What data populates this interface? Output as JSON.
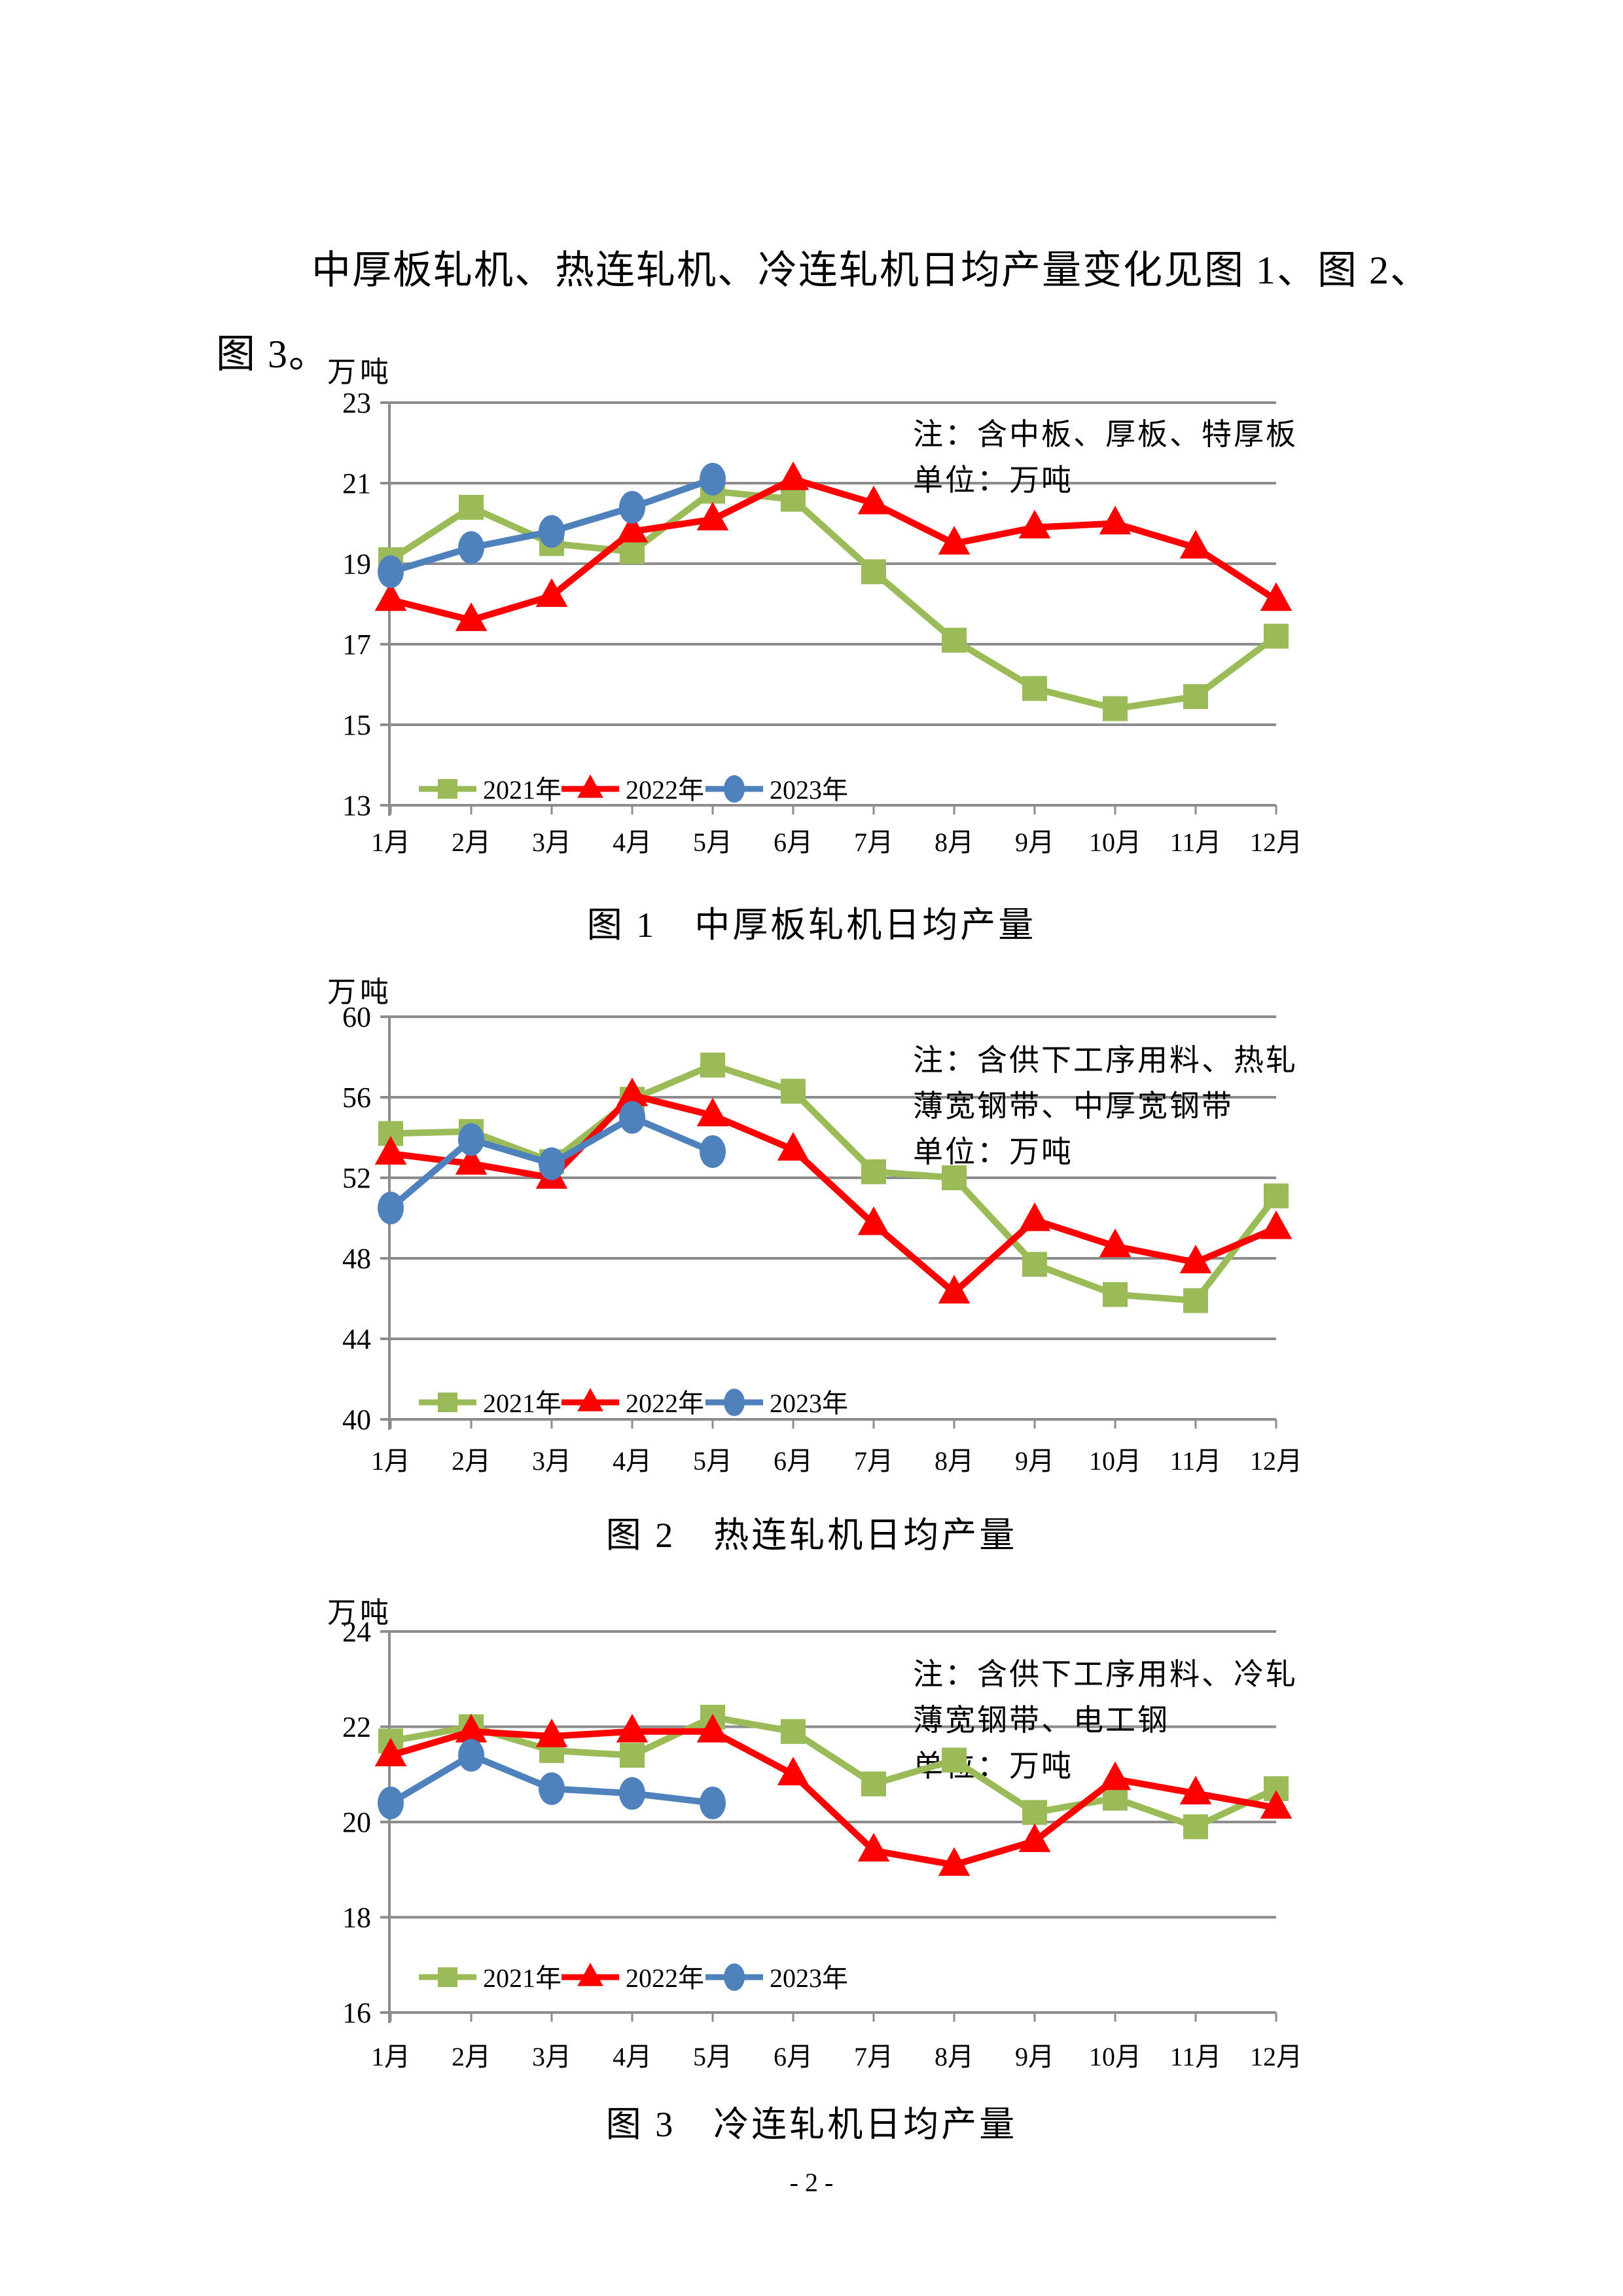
{
  "intro": {
    "line1": "中厚板轧机、热连轧机、冷连轧机日均产量变化见图 1、图 2、",
    "line2": "图 3。"
  },
  "page_number": "- 2 -",
  "colors": {
    "series_2021": "#9BBB59",
    "series_2022": "#FF0000",
    "series_2023": "#4F81BD",
    "gridline": "#8C8C8C",
    "axis": "#8C8C8C",
    "text": "#000000"
  },
  "chart_data": [
    {
      "type": "line",
      "caption": "图 1　中厚板轧机日均产量",
      "unit_label": "万吨",
      "note_lines": [
        "注：含中板、厚板、特厚板",
        "单位：万吨"
      ],
      "x_labels": [
        "1月",
        "2月",
        "3月",
        "4月",
        "5月",
        "6月",
        "7月",
        "8月",
        "9月",
        "10月",
        "11月",
        "12月"
      ],
      "ylim": [
        13,
        23
      ],
      "yticks": [
        23,
        21,
        19,
        17,
        15,
        13
      ],
      "grid": true,
      "legend_position": "bottom-left-inside",
      "series": [
        {
          "name": "2021年",
          "color": "#9BBB59",
          "marker": "square",
          "values": [
            19.1,
            20.4,
            19.5,
            19.3,
            20.8,
            20.6,
            18.8,
            17.1,
            15.9,
            15.4,
            15.7,
            17.2
          ]
        },
        {
          "name": "2022年",
          "color": "#FF0000",
          "marker": "triangle",
          "values": [
            18.1,
            17.6,
            18.2,
            19.8,
            20.1,
            21.1,
            20.5,
            19.5,
            19.9,
            20.0,
            19.4,
            18.1
          ]
        },
        {
          "name": "2023年",
          "color": "#4F81BD",
          "marker": "circle",
          "values": [
            18.8,
            19.4,
            19.8,
            20.4,
            21.1
          ]
        }
      ]
    },
    {
      "type": "line",
      "caption": "图 2　热连轧机日均产量",
      "unit_label": "万吨",
      "note_lines": [
        "注：含供下工序用料、热轧",
        "薄宽钢带、中厚宽钢带",
        "单位：万吨"
      ],
      "x_labels": [
        "1月",
        "2月",
        "3月",
        "4月",
        "5月",
        "6月",
        "7月",
        "8月",
        "9月",
        "10月",
        "11月",
        "12月"
      ],
      "ylim": [
        40,
        60
      ],
      "yticks": [
        60,
        56,
        52,
        48,
        44,
        40
      ],
      "grid": true,
      "legend_position": "bottom-left-inside",
      "series": [
        {
          "name": "2021年",
          "color": "#9BBB59",
          "marker": "square",
          "values": [
            54.2,
            54.3,
            52.8,
            55.9,
            57.6,
            56.3,
            52.3,
            52.0,
            47.7,
            46.2,
            45.9,
            51.1
          ]
        },
        {
          "name": "2022年",
          "color": "#FF0000",
          "marker": "triangle",
          "values": [
            53.2,
            52.7,
            52.0,
            56.1,
            55.1,
            53.4,
            49.7,
            46.3,
            49.9,
            48.6,
            47.8,
            49.5
          ]
        },
        {
          "name": "2023年",
          "color": "#4F81BD",
          "marker": "circle",
          "values": [
            50.5,
            53.9,
            52.7,
            55.0,
            53.3
          ]
        }
      ]
    },
    {
      "type": "line",
      "caption": "图 3　冷连轧机日均产量",
      "unit_label": "万吨",
      "note_lines": [
        "注：含供下工序用料、冷轧",
        "薄宽钢带、电工钢",
        "单位：万吨"
      ],
      "x_labels": [
        "1月",
        "2月",
        "3月",
        "4月",
        "5月",
        "6月",
        "7月",
        "8月",
        "9月",
        "10月",
        "11月",
        "12月"
      ],
      "ylim": [
        16,
        24
      ],
      "yticks": [
        24,
        22,
        20,
        18,
        16
      ],
      "grid": true,
      "legend_position": "bottom-left-inside",
      "series": [
        {
          "name": "2021年",
          "color": "#9BBB59",
          "marker": "square",
          "values": [
            21.7,
            22.0,
            21.5,
            21.4,
            22.2,
            21.9,
            20.8,
            21.3,
            20.2,
            20.5,
            19.9,
            20.7
          ]
        },
        {
          "name": "2022年",
          "color": "#FF0000",
          "marker": "triangle",
          "values": [
            21.4,
            21.9,
            21.8,
            21.9,
            21.9,
            21.0,
            19.4,
            19.1,
            19.6,
            20.9,
            20.6,
            20.3
          ]
        },
        {
          "name": "2023年",
          "color": "#4F81BD",
          "marker": "circle",
          "values": [
            20.4,
            21.4,
            20.7,
            20.6,
            20.4
          ]
        }
      ]
    }
  ]
}
